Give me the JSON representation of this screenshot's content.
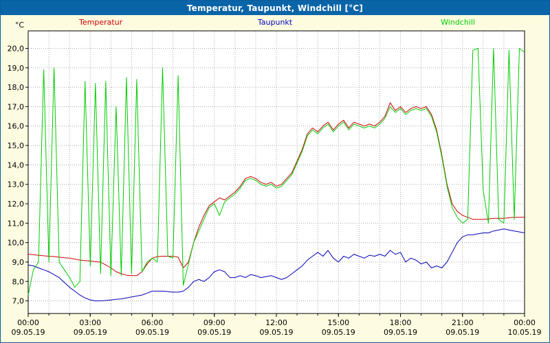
{
  "window": {
    "title": "Temperatur, Taupunkt, Windchill [°C]"
  },
  "colors": {
    "titlebar_bg": "#0a64a8",
    "titlebar_text": "#ffffff",
    "panel_bg": "#fdfce0",
    "plot_bg": "#ffffff",
    "grid": "#aaaaaa",
    "axis": "#000000",
    "temperatur": "#cc0000",
    "taupunkt": "#0000bb",
    "windchill": "#00cc00"
  },
  "chart_data": {
    "type": "line",
    "title": "Temperatur, Taupunkt, Windchill [°C]",
    "xlabel": "",
    "ylabel": "°C",
    "y_unit": "°C",
    "xlim": [
      0,
      24
    ],
    "ylim": [
      6.35,
      20.9
    ],
    "grid": {
      "horizontal_step_degC": 1,
      "vertical_step_hours": 1,
      "style": "dotted"
    },
    "x_start": 0,
    "x_step_hours": 0.25,
    "x_ticks": [
      {
        "h": 0,
        "time": "00:00",
        "date": "09.05.19"
      },
      {
        "h": 3,
        "time": "03:00",
        "date": "09.05.19"
      },
      {
        "h": 6,
        "time": "06:00",
        "date": "09.05.19"
      },
      {
        "h": 9,
        "time": "09:00",
        "date": "09.05.19"
      },
      {
        "h": 12,
        "time": "12:00",
        "date": "09.05.19"
      },
      {
        "h": 15,
        "time": "15:00",
        "date": "09.05.19"
      },
      {
        "h": 18,
        "time": "18:00",
        "date": "09.05.19"
      },
      {
        "h": 21,
        "time": "21:00",
        "date": "09.05.19"
      },
      {
        "h": 24,
        "time": "00:00",
        "date": "10.05.19"
      }
    ],
    "y_ticks": [
      {
        "v": 20,
        "label": "20,0"
      },
      {
        "v": 19,
        "label": "19,0"
      },
      {
        "v": 18,
        "label": "18,0"
      },
      {
        "v": 17,
        "label": "17,0"
      },
      {
        "v": 16,
        "label": "16,0"
      },
      {
        "v": 15,
        "label": "15,0"
      },
      {
        "v": 14,
        "label": "14,0"
      },
      {
        "v": 13,
        "label": "13,0"
      },
      {
        "v": 12,
        "label": "12,0"
      },
      {
        "v": 11,
        "label": "11,0"
      },
      {
        "v": 10,
        "label": "10,0"
      },
      {
        "v": 9,
        "label": "9,0"
      },
      {
        "v": 8,
        "label": "8,0"
      },
      {
        "v": 7,
        "label": "7,0"
      }
    ],
    "series": [
      {
        "name": "Temperatur",
        "color": "#cc0000",
        "values": [
          9.4,
          9.38,
          9.35,
          9.32,
          9.3,
          9.28,
          9.25,
          9.22,
          9.2,
          9.15,
          9.1,
          9.08,
          9.05,
          9.02,
          9.0,
          8.85,
          8.7,
          8.5,
          8.4,
          8.32,
          8.3,
          8.3,
          8.5,
          8.9,
          9.2,
          9.28,
          9.3,
          9.3,
          9.3,
          9.25,
          8.7,
          9.0,
          10.0,
          10.8,
          11.4,
          11.9,
          12.1,
          12.3,
          12.2,
          12.4,
          12.6,
          12.9,
          13.3,
          13.4,
          13.3,
          13.1,
          13.0,
          13.1,
          12.9,
          13.0,
          13.3,
          13.6,
          14.2,
          14.8,
          15.6,
          15.9,
          15.7,
          16.0,
          16.2,
          15.8,
          16.1,
          16.3,
          15.9,
          16.2,
          16.1,
          16.0,
          16.1,
          16.0,
          16.2,
          16.5,
          17.2,
          16.8,
          17.0,
          16.7,
          16.9,
          17.0,
          16.9,
          17.0,
          16.6,
          15.8,
          14.5,
          13.0,
          12.0,
          11.6,
          11.4,
          11.3,
          11.2,
          11.2,
          11.2,
          11.22,
          11.25,
          11.25,
          11.25,
          11.28,
          11.3,
          11.3,
          11.3
        ]
      },
      {
        "name": "Taupunkt",
        "color": "#0000bb",
        "values": [
          8.85,
          8.8,
          8.7,
          8.6,
          8.5,
          8.35,
          8.2,
          7.95,
          7.7,
          7.5,
          7.3,
          7.15,
          7.05,
          7.0,
          7.0,
          7.02,
          7.05,
          7.08,
          7.1,
          7.15,
          7.2,
          7.25,
          7.3,
          7.4,
          7.5,
          7.5,
          7.5,
          7.48,
          7.45,
          7.45,
          7.5,
          7.7,
          8.0,
          8.1,
          8.0,
          8.2,
          8.5,
          8.6,
          8.5,
          8.2,
          8.2,
          8.3,
          8.2,
          8.35,
          8.3,
          8.2,
          8.25,
          8.3,
          8.2,
          8.1,
          8.2,
          8.4,
          8.6,
          8.8,
          9.1,
          9.3,
          9.5,
          9.3,
          9.6,
          9.2,
          9.0,
          9.3,
          9.2,
          9.4,
          9.3,
          9.2,
          9.35,
          9.3,
          9.4,
          9.3,
          9.6,
          9.4,
          9.5,
          9.0,
          9.2,
          9.1,
          8.9,
          9.0,
          8.7,
          8.8,
          8.7,
          9.0,
          9.5,
          10.0,
          10.3,
          10.4,
          10.4,
          10.45,
          10.5,
          10.5,
          10.6,
          10.65,
          10.7,
          10.65,
          10.6,
          10.55,
          10.5
        ]
      },
      {
        "name": "Windchill",
        "color": "#00cc00",
        "values": [
          7.3,
          8.6,
          9.0,
          18.9,
          9.0,
          19.0,
          9.0,
          8.6,
          8.2,
          7.7,
          8.0,
          18.3,
          8.8,
          18.2,
          8.4,
          18.3,
          8.3,
          17.0,
          8.3,
          18.5,
          8.4,
          18.4,
          8.5,
          9.0,
          9.2,
          9.0,
          19.0,
          9.3,
          9.2,
          18.6,
          7.8,
          8.9,
          10.0,
          10.6,
          11.2,
          11.8,
          12.0,
          11.4,
          12.1,
          12.3,
          12.5,
          12.8,
          13.2,
          13.3,
          13.2,
          13.0,
          12.9,
          13.0,
          12.8,
          12.9,
          13.2,
          13.5,
          14.1,
          14.7,
          15.5,
          15.8,
          15.6,
          15.9,
          16.1,
          15.7,
          16.0,
          16.2,
          15.8,
          16.1,
          16.0,
          15.9,
          16.0,
          15.9,
          16.1,
          16.4,
          17.0,
          16.7,
          16.9,
          16.6,
          16.8,
          16.9,
          16.8,
          16.9,
          16.5,
          15.7,
          14.4,
          12.9,
          11.8,
          11.3,
          11.0,
          11.2,
          19.9,
          20.0,
          12.7,
          11.0,
          20.0,
          11.2,
          11.0,
          19.9,
          11.2,
          20.0,
          19.8
        ]
      }
    ],
    "legend_position": "top"
  }
}
